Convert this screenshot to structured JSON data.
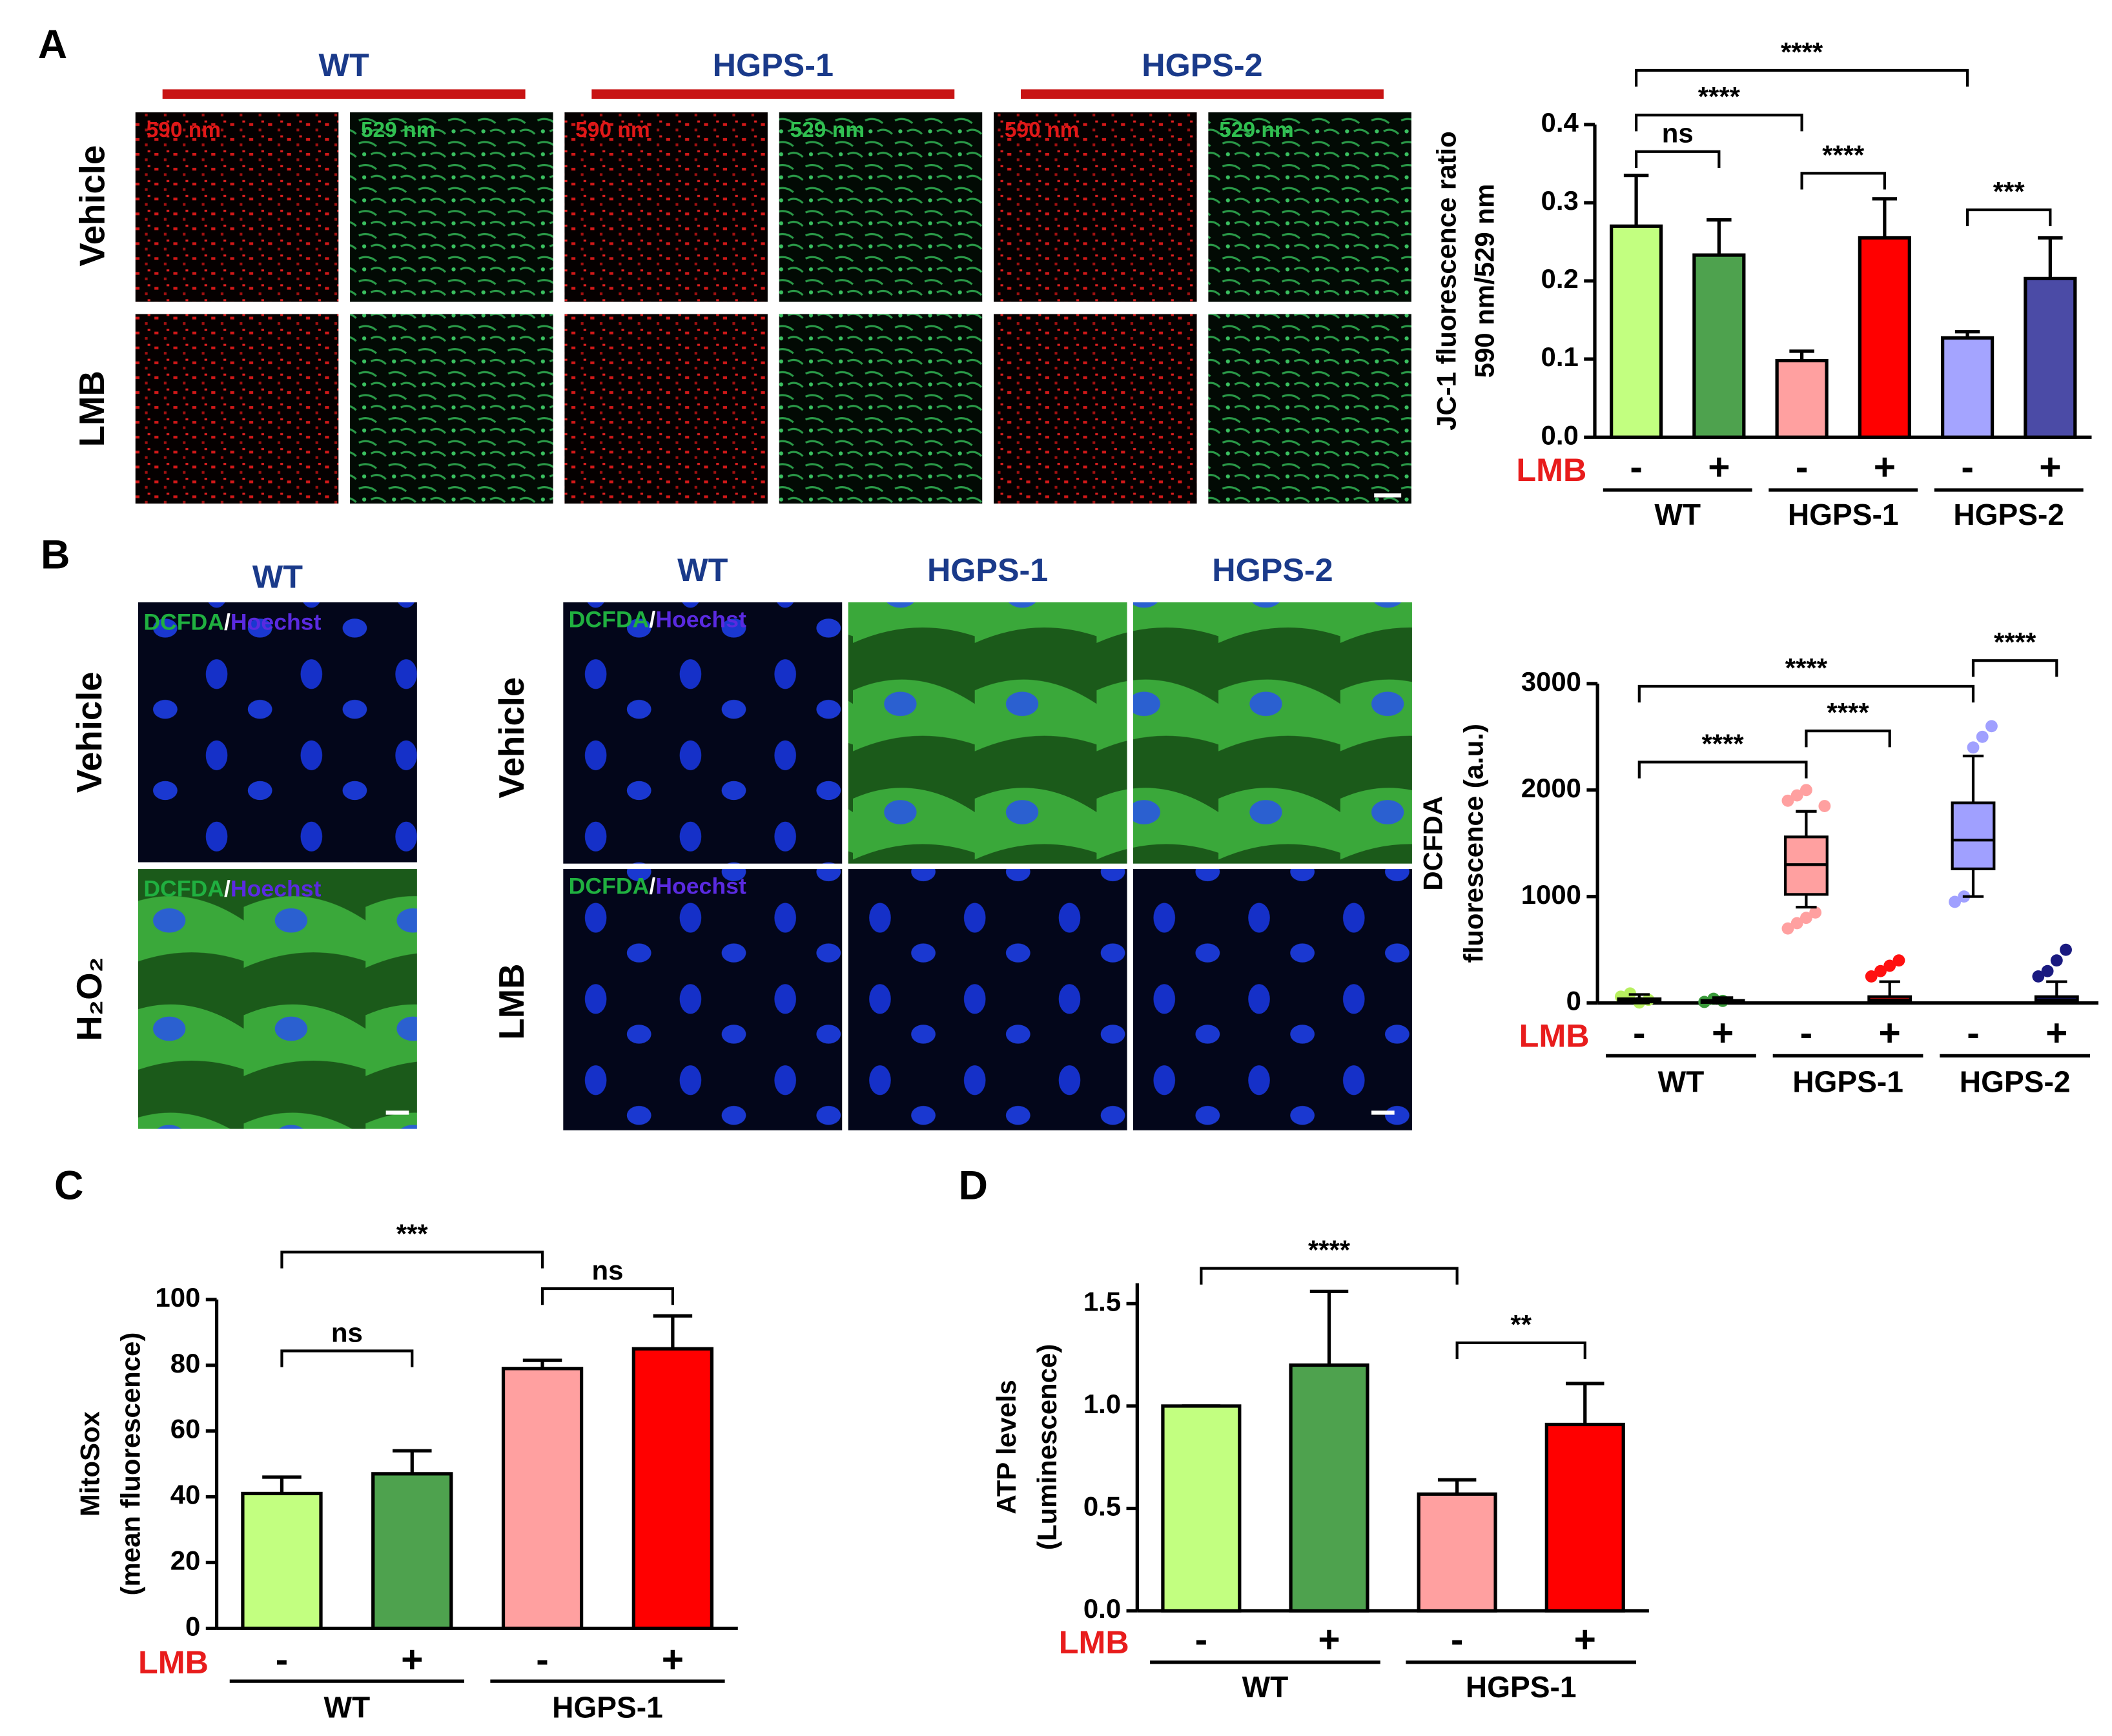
{
  "figure": {
    "panel_labels": [
      "A",
      "B",
      "C",
      "D"
    ],
    "A_images": {
      "groups": [
        "WT",
        "HGPS-1",
        "HGPS-2"
      ],
      "channels": [
        "590 nm",
        "529 nm"
      ],
      "rows": [
        "Vehicle",
        "LMB"
      ]
    },
    "B_images": {
      "control_group": "WT",
      "control_rows": [
        "Vehicle",
        "H₂O₂"
      ],
      "groups": [
        "WT",
        "HGPS-1",
        "HGPS-2"
      ],
      "rows": [
        "Vehicle",
        "LMB"
      ],
      "stain": [
        "DCFDA",
        "/",
        "Hoechst"
      ]
    }
  },
  "chart_data": [
    {
      "type": "bar",
      "ylabel": [
        "JC-1 fluorescence ratio",
        "590 nm/529 nm"
      ],
      "treatment_label": "LMB",
      "categories": [
        "-",
        "+",
        "-",
        "+",
        "-",
        "+"
      ],
      "groups": [
        "WT",
        "HGPS-1",
        "HGPS-2"
      ],
      "values": [
        0.27,
        0.233,
        0.098,
        0.255,
        0.127,
        0.203
      ],
      "errors": [
        0.065,
        0.045,
        0.012,
        0.05,
        0.008,
        0.052
      ],
      "colors": [
        "#c2ff80",
        "#4ea24e",
        "#ffa0a0",
        "#ff0000",
        "#a4a4ff",
        "#4b4ba6"
      ],
      "ylim": [
        0,
        0.4
      ],
      "yticks": [
        {
          "value": 0,
          "label": "0.0"
        },
        0.1,
        0.2,
        0.3,
        0.4
      ],
      "significance": [
        {
          "from": 0,
          "to": 1,
          "label": "ns"
        },
        {
          "from": 2,
          "to": 3,
          "label": "****"
        },
        {
          "from": 4,
          "to": 5,
          "label": "***"
        },
        {
          "from": 0,
          "to": 2,
          "label": "****"
        },
        {
          "from": 0,
          "to": 4,
          "label": "****"
        }
      ]
    },
    {
      "type": "box",
      "ylabel": [
        "DCFDA",
        "fluorescence (a.u.)"
      ],
      "treatment_label": "LMB",
      "categories": [
        "-",
        "+",
        "-",
        "+",
        "-",
        "+"
      ],
      "groups": [
        "WT",
        "HGPS-1",
        "HGPS-2"
      ],
      "boxes": [
        {
          "min": 0,
          "q1": 10,
          "median": 25,
          "q3": 40,
          "max": 80,
          "points": [
            60,
            90,
            5,
            30
          ]
        },
        {
          "min": 0,
          "q1": 5,
          "median": 15,
          "q3": 25,
          "max": 50,
          "points": [
            10,
            40,
            20
          ]
        },
        {
          "min": 900,
          "q1": 1020,
          "median": 1300,
          "q3": 1560,
          "max": 1800,
          "points": [
            700,
            750,
            800,
            850,
            1850,
            1900,
            1950,
            2000
          ]
        },
        {
          "min": 0,
          "q1": 10,
          "median": 30,
          "q3": 60,
          "max": 200,
          "points": [
            250,
            300,
            350,
            400
          ]
        },
        {
          "min": 1000,
          "q1": 1260,
          "median": 1530,
          "q3": 1880,
          "max": 2320,
          "points": [
            950,
            1000,
            2400,
            2500,
            2600
          ]
        },
        {
          "min": 0,
          "q1": 10,
          "median": 30,
          "q3": 60,
          "max": 200,
          "points": [
            250,
            300,
            400,
            500
          ]
        }
      ],
      "colors": [
        "#b8f060",
        "#3a9a3a",
        "#ffa0a0",
        "#ff1010",
        "#a0a0ff",
        "#1a1a80"
      ],
      "ylim": [
        0,
        3000
      ],
      "yticks": [
        0,
        1000,
        2000,
        3000
      ],
      "significance": [
        {
          "from": 0,
          "to": 2,
          "label": "****"
        },
        {
          "from": 2,
          "to": 3,
          "label": "****"
        },
        {
          "from": 0,
          "to": 4,
          "label": "****"
        },
        {
          "from": 4,
          "to": 5,
          "label": "****"
        }
      ]
    },
    {
      "type": "bar",
      "ylabel": [
        "MitoSox",
        "(mean fluorescence)"
      ],
      "treatment_label": "LMB",
      "categories": [
        "-",
        "+",
        "-",
        "+"
      ],
      "groups": [
        "WT",
        "HGPS-1"
      ],
      "values": [
        41,
        47,
        79,
        85
      ],
      "errors": [
        5,
        7,
        2.5,
        10
      ],
      "colors": [
        "#c2ff80",
        "#4ea24e",
        "#ffa0a0",
        "#ff0000"
      ],
      "ylim": [
        0,
        100
      ],
      "yticks": [
        0,
        20,
        40,
        60,
        80,
        100
      ],
      "significance": [
        {
          "from": 0,
          "to": 1,
          "label": "ns"
        },
        {
          "from": 2,
          "to": 3,
          "label": "ns"
        },
        {
          "from": 0,
          "to": 2,
          "label": "***"
        }
      ]
    },
    {
      "type": "bar",
      "ylabel": [
        "ATP levels",
        "(Luminescence)"
      ],
      "treatment_label": "LMB",
      "categories": [
        "-",
        "+",
        "-",
        "+"
      ],
      "groups": [
        "WT",
        "HGPS-1"
      ],
      "values": [
        1.0,
        1.2,
        0.57,
        0.91
      ],
      "errors": [
        0,
        0.36,
        0.07,
        0.2
      ],
      "colors": [
        "#c2ff80",
        "#4ea24e",
        "#ffa0a0",
        "#ff0000"
      ],
      "ylim": [
        0,
        1.6
      ],
      "yticks": [
        {
          "value": 0,
          "label": "0.0"
        },
        0.5,
        {
          "value": 1,
          "label": "1.0"
        },
        1.5
      ],
      "significance": [
        {
          "from": 0,
          "to": 2,
          "label": "****"
        },
        {
          "from": 2,
          "to": 3,
          "label": "**"
        }
      ]
    }
  ]
}
